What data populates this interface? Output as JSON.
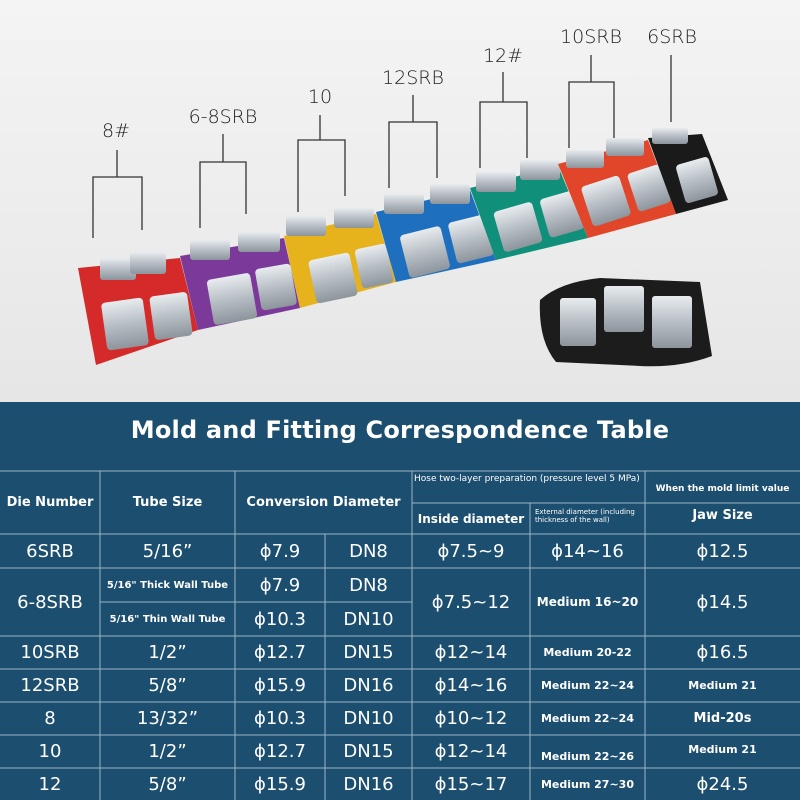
{
  "photo": {
    "labels": [
      "8#",
      "6-8SRB",
      "10",
      "12SRB",
      "12#",
      "10SRB",
      "6SRB"
    ]
  },
  "table": {
    "title": "Mold and Fitting Correspondence Table",
    "headers": {
      "die_number": "Die Number",
      "tube_size": "Tube Size",
      "conversion_diameter": "Conversion Diameter",
      "hose_prep": "Hose two-layer preparation (pressure level 5 MPa)",
      "inside_diameter": "Inside diameter",
      "external_diameter": "External diameter (including thickness of the wall)",
      "limit_value": "When the mold limit value",
      "jaw_size": "Jaw Size"
    },
    "rows": [
      {
        "die": "6SRB",
        "tube": "5/16”",
        "phi": "ϕ7.9",
        "dn": "DN8",
        "inside": "ϕ7.5~9",
        "external": "ϕ14~16",
        "jaw": "ϕ12.5"
      },
      {
        "die": "6-8SRB",
        "tube_a": "5/16\" Thick Wall Tube",
        "tube_b": "5/16\" Thin Wall Tube",
        "phi_a": "ϕ7.9",
        "dn_a": "DN8",
        "phi_b": "ϕ10.3",
        "dn_b": "DN10",
        "inside": "ϕ7.5~12",
        "external": "Medium 16~20",
        "jaw": "ϕ14.5"
      },
      {
        "die": "10SRB",
        "tube": "1/2”",
        "phi": "ϕ12.7",
        "dn": "DN15",
        "inside": "ϕ12~14",
        "external": "Medium 20-22",
        "jaw": "ϕ16.5"
      },
      {
        "die": "12SRB",
        "tube": "5/8”",
        "phi": "ϕ15.9",
        "dn": "DN16",
        "inside": "ϕ14~16",
        "external": "Medium 22~24",
        "jaw": "Medium 21"
      },
      {
        "die": "8",
        "tube": "13/32”",
        "phi": "ϕ10.3",
        "dn": "DN10",
        "inside": "ϕ10~12",
        "external": "Medium 22~24",
        "jaw": "Mid-20s"
      },
      {
        "die": "10",
        "tube": "1/2”",
        "phi": "ϕ12.7",
        "dn": "DN15",
        "inside": "ϕ12~14",
        "external": "Medium 22~26",
        "jaw": "Medium 21"
      },
      {
        "die": "12",
        "tube": "5/8”",
        "phi": "ϕ15.9",
        "dn": "DN16",
        "inside": "ϕ15~17",
        "external": "Medium 27~30",
        "jaw": "ϕ24.5"
      }
    ]
  },
  "colors": {
    "panel": "#1c4e6f",
    "red": "#d42a2a",
    "purple": "#7b3a9a",
    "yellow": "#e6b31c",
    "blue": "#1f6fbf",
    "green": "#10907a",
    "orange": "#e2462a",
    "black": "#1a1a1a"
  }
}
